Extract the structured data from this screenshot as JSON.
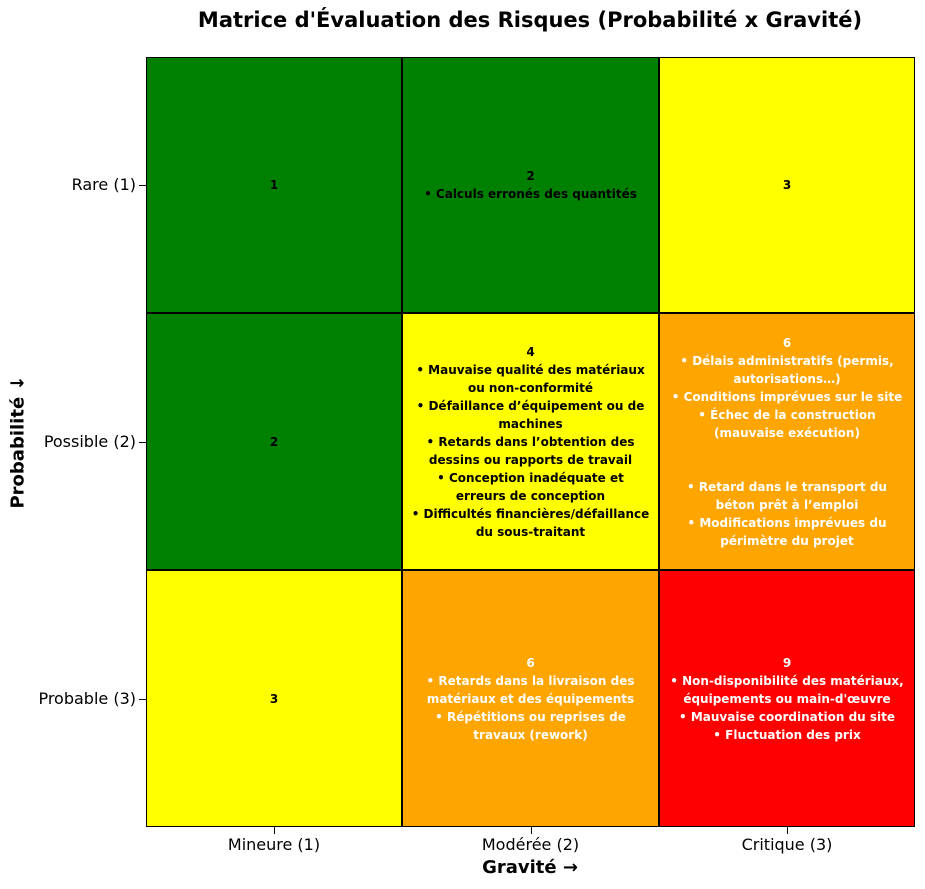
{
  "chart_data": {
    "type": "heatmap",
    "title": "Matrice d'Évaluation des Risques (Probabilité x Gravité)",
    "xlabel": "Gravité →",
    "ylabel": "Probabilité ↓",
    "x_categories": [
      "Mineure (1)",
      "Modérée (2)",
      "Critique (3)"
    ],
    "y_categories": [
      "Rare (1)",
      "Possible (2)",
      "Probable (3)"
    ],
    "color_scale": {
      "low": "#008000",
      "medium": "#ffff00",
      "high": "#ffa500",
      "critical": "#ff0000"
    },
    "cells": [
      {
        "row": 0,
        "col": 0,
        "score": "1",
        "color": "#008000",
        "text_color": "#000000",
        "risks": []
      },
      {
        "row": 0,
        "col": 1,
        "score": "2",
        "color": "#008000",
        "text_color": "#000000",
        "risks": [
          "• Calculs erronés des quantités"
        ]
      },
      {
        "row": 0,
        "col": 2,
        "score": "3",
        "color": "#ffff00",
        "text_color": "#000000",
        "risks": []
      },
      {
        "row": 1,
        "col": 0,
        "score": "2",
        "color": "#008000",
        "text_color": "#000000",
        "risks": []
      },
      {
        "row": 1,
        "col": 1,
        "score": "4",
        "color": "#ffff00",
        "text_color": "#000000",
        "risks": [
          "• Mauvaise qualité des matériaux ou non-conformité",
          "• Défaillance d’équipement ou de machines",
          "• Retards dans l’obtention des dessins ou rapports de travail",
          "• Conception inadéquate et erreurs de conception",
          "• Difficultés financières/défaillance du sous-traitant"
        ]
      },
      {
        "row": 1,
        "col": 2,
        "score": "6",
        "color": "#ffa500",
        "text_color": "#ffffff",
        "risks": [
          "• Délais administratifs (permis, autorisations…)",
          "• Conditions imprévues sur le site",
          "• Échec de la construction (mauvaise exécution)",
          "",
          "• Retard dans le transport du béton prêt à l’emploi",
          "• Modifications imprévues du périmètre du projet"
        ]
      },
      {
        "row": 2,
        "col": 0,
        "score": "3",
        "color": "#ffff00",
        "text_color": "#000000",
        "risks": []
      },
      {
        "row": 2,
        "col": 1,
        "score": "6",
        "color": "#ffa500",
        "text_color": "#ffffff",
        "risks": [
          "• Retards dans la livraison des matériaux et des équipements",
          "• Répétitions ou reprises de travaux (rework)"
        ]
      },
      {
        "row": 2,
        "col": 2,
        "score": "9",
        "color": "#ff0000",
        "text_color": "#ffffff",
        "risks": [
          "• Non-disponibilité des matériaux, équipements ou main-d'œuvre",
          "• Mauvaise coordination du site",
          "• Fluctuation des prix"
        ]
      }
    ]
  }
}
